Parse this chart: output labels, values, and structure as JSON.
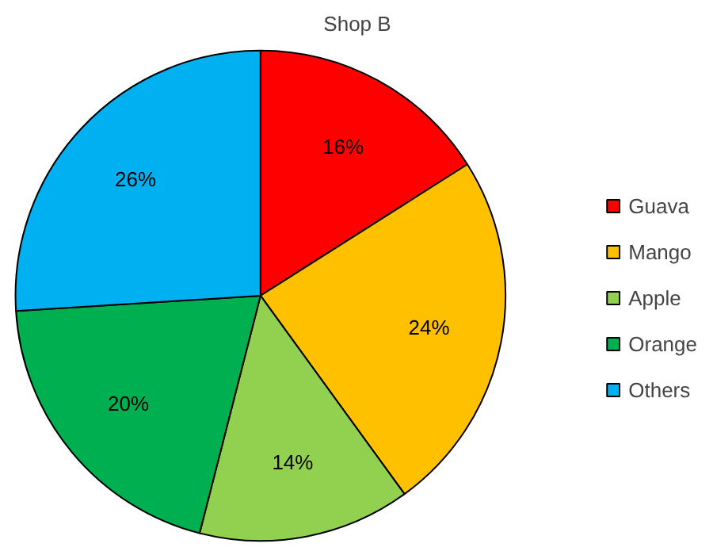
{
  "chart_data": {
    "type": "pie",
    "title": "Shop B",
    "categories": [
      "Guava",
      "Mango",
      "Apple",
      "Orange",
      "Others"
    ],
    "values": [
      16,
      24,
      14,
      20,
      26
    ],
    "value_labels": [
      "16%",
      "24%",
      "14%",
      "20%",
      "26%"
    ],
    "colors": [
      "#ff0000",
      "#ffc000",
      "#92d050",
      "#00b050",
      "#00b0f0"
    ],
    "legend": "right"
  }
}
